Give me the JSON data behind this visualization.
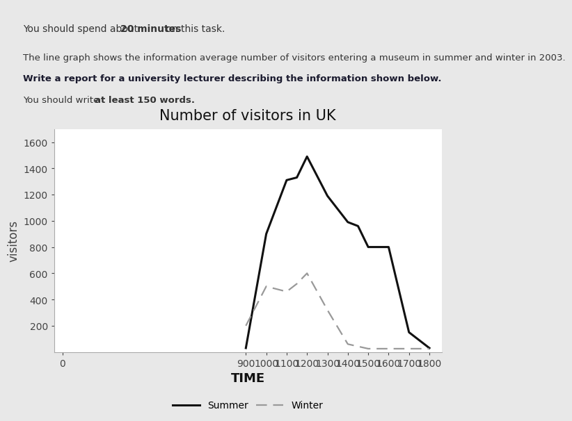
{
  "title": "Number of visitors in UK",
  "xlabel": "TIME",
  "ylabel": "visitors",
  "x_ticks": [
    0,
    900,
    1000,
    1100,
    1200,
    1300,
    1400,
    1500,
    1600,
    1700,
    1800
  ],
  "x_tick_labels": [
    "0",
    "900",
    "1000",
    "1100",
    "1200",
    "1300",
    "1400",
    "1500",
    "1600",
    "1700",
    "1800"
  ],
  "ylim": [
    0,
    1700
  ],
  "y_ticks": [
    200,
    400,
    600,
    800,
    1000,
    1200,
    1400,
    1600
  ],
  "summer_x": [
    900,
    1000,
    1100,
    1150,
    1200,
    1300,
    1400,
    1450,
    1500,
    1600,
    1700,
    1800
  ],
  "summer_y": [
    30,
    900,
    1310,
    1330,
    1490,
    1190,
    990,
    960,
    800,
    800,
    150,
    30
  ],
  "winter_x": [
    900,
    1000,
    1050,
    1100,
    1150,
    1200,
    1300,
    1400,
    1500,
    1600,
    1700,
    1800
  ],
  "winter_y": [
    200,
    500,
    480,
    460,
    520,
    600,
    320,
    60,
    25,
    25,
    25,
    25
  ],
  "summer_color": "#111111",
  "winter_color": "#999999",
  "header_bg": "#e8e8e8",
  "chart_bg": "#ffffff",
  "title_fontsize": 15,
  "axis_label_fontsize": 12,
  "tick_fontsize": 10,
  "header_line1": "You should spend about ",
  "header_line1_bold": "20 minutes",
  "header_line1_end": " on this task.",
  "header_line2a": "The line graph shows the information average number of visitors entering a museum in summer and winter in 2003.",
  "header_line2b": "Write a report for a university lecturer describing the information shown below.",
  "header_line3a": "You should write ",
  "header_line3b": "at least 150 words."
}
